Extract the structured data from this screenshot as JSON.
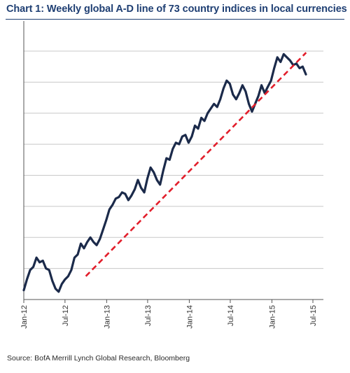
{
  "title": "Chart 1: Weekly global A-D line of 73 country indices in local currencies",
  "source": "Source: BofA Merrill Lynch Global Research, Bloomberg",
  "colors": {
    "title": "#1f3f73",
    "series": "#1b2a4a",
    "trendline": "#e21e2b",
    "grid": "#c8c8c8"
  },
  "chart_data": {
    "type": "line",
    "title": "Chart 1: Weekly global A-D line of 73 country indices in local currencies",
    "xlabel": "",
    "ylabel": "",
    "grid": true,
    "legend": "none",
    "y_axis_labels": false,
    "y_relative_range": [
      0,
      8
    ],
    "x_tick_labels": [
      "Jan-12",
      "Jul-12",
      "Jan-13",
      "Jul-13",
      "Jan-14",
      "Jul-14",
      "Jan-15",
      "Jul-15"
    ],
    "x_ticks": [
      "2012-01-01",
      "2012-07-01",
      "2013-01-01",
      "2013-07-01",
      "2014-01-01",
      "2014-07-01",
      "2015-01-01",
      "2015-07-01"
    ],
    "series": [
      {
        "style": "solid",
        "points": [
          [
            "2012-01-01",
            0.3
          ],
          [
            "2012-01-15",
            0.65
          ],
          [
            "2012-01-29",
            0.95
          ],
          [
            "2012-02-12",
            1.05
          ],
          [
            "2012-02-26",
            1.35
          ],
          [
            "2012-03-11",
            1.2
          ],
          [
            "2012-03-25",
            1.25
          ],
          [
            "2012-04-08",
            1.0
          ],
          [
            "2012-04-22",
            0.95
          ],
          [
            "2012-05-06",
            0.6
          ],
          [
            "2012-05-20",
            0.35
          ],
          [
            "2012-06-03",
            0.25
          ],
          [
            "2012-06-17",
            0.5
          ],
          [
            "2012-07-01",
            0.65
          ],
          [
            "2012-07-15",
            0.75
          ],
          [
            "2012-07-29",
            0.95
          ],
          [
            "2012-08-12",
            1.35
          ],
          [
            "2012-08-26",
            1.45
          ],
          [
            "2012-09-09",
            1.8
          ],
          [
            "2012-09-23",
            1.65
          ],
          [
            "2012-10-07",
            1.85
          ],
          [
            "2012-10-21",
            2.0
          ],
          [
            "2012-11-04",
            1.85
          ],
          [
            "2012-11-18",
            1.75
          ],
          [
            "2012-12-02",
            1.95
          ],
          [
            "2012-12-16",
            2.25
          ],
          [
            "2012-12-30",
            2.55
          ],
          [
            "2013-01-13",
            2.9
          ],
          [
            "2013-01-27",
            3.05
          ],
          [
            "2013-02-10",
            3.25
          ],
          [
            "2013-02-24",
            3.3
          ],
          [
            "2013-03-10",
            3.45
          ],
          [
            "2013-03-24",
            3.4
          ],
          [
            "2013-04-07",
            3.2
          ],
          [
            "2013-04-21",
            3.35
          ],
          [
            "2013-05-05",
            3.55
          ],
          [
            "2013-05-19",
            3.85
          ],
          [
            "2013-06-02",
            3.6
          ],
          [
            "2013-06-16",
            3.45
          ],
          [
            "2013-06-30",
            3.9
          ],
          [
            "2013-07-14",
            4.25
          ],
          [
            "2013-07-28",
            4.1
          ],
          [
            "2013-08-11",
            3.85
          ],
          [
            "2013-08-25",
            3.7
          ],
          [
            "2013-09-08",
            4.15
          ],
          [
            "2013-09-22",
            4.55
          ],
          [
            "2013-10-06",
            4.5
          ],
          [
            "2013-10-20",
            4.85
          ],
          [
            "2013-11-03",
            5.05
          ],
          [
            "2013-11-17",
            5.0
          ],
          [
            "2013-12-01",
            5.25
          ],
          [
            "2013-12-15",
            5.3
          ],
          [
            "2013-12-29",
            5.05
          ],
          [
            "2014-01-12",
            5.25
          ],
          [
            "2014-01-26",
            5.6
          ],
          [
            "2014-02-09",
            5.5
          ],
          [
            "2014-02-23",
            5.85
          ],
          [
            "2014-03-09",
            5.75
          ],
          [
            "2014-03-23",
            6.0
          ],
          [
            "2014-04-06",
            6.15
          ],
          [
            "2014-04-20",
            6.3
          ],
          [
            "2014-05-04",
            6.2
          ],
          [
            "2014-05-18",
            6.45
          ],
          [
            "2014-06-01",
            6.8
          ],
          [
            "2014-06-15",
            7.05
          ],
          [
            "2014-06-29",
            6.95
          ],
          [
            "2014-07-13",
            6.6
          ],
          [
            "2014-07-27",
            6.45
          ],
          [
            "2014-08-10",
            6.65
          ],
          [
            "2014-08-24",
            6.9
          ],
          [
            "2014-09-07",
            6.7
          ],
          [
            "2014-09-21",
            6.3
          ],
          [
            "2014-10-05",
            6.05
          ],
          [
            "2014-10-19",
            6.3
          ],
          [
            "2014-11-02",
            6.55
          ],
          [
            "2014-11-16",
            6.9
          ],
          [
            "2014-11-30",
            6.65
          ],
          [
            "2014-12-14",
            6.85
          ],
          [
            "2014-12-28",
            7.05
          ],
          [
            "2015-01-11",
            7.45
          ],
          [
            "2015-01-25",
            7.8
          ],
          [
            "2015-02-08",
            7.65
          ],
          [
            "2015-02-22",
            7.9
          ],
          [
            "2015-03-08",
            7.8
          ],
          [
            "2015-03-22",
            7.7
          ],
          [
            "2015-04-05",
            7.55
          ],
          [
            "2015-04-19",
            7.6
          ],
          [
            "2015-05-03",
            7.45
          ],
          [
            "2015-05-17",
            7.5
          ],
          [
            "2015-05-31",
            7.25
          ]
        ]
      },
      {
        "style": "dashed",
        "points": [
          [
            "2012-10-01",
            0.75
          ],
          [
            "2015-06-01",
            7.95
          ]
        ]
      }
    ]
  }
}
